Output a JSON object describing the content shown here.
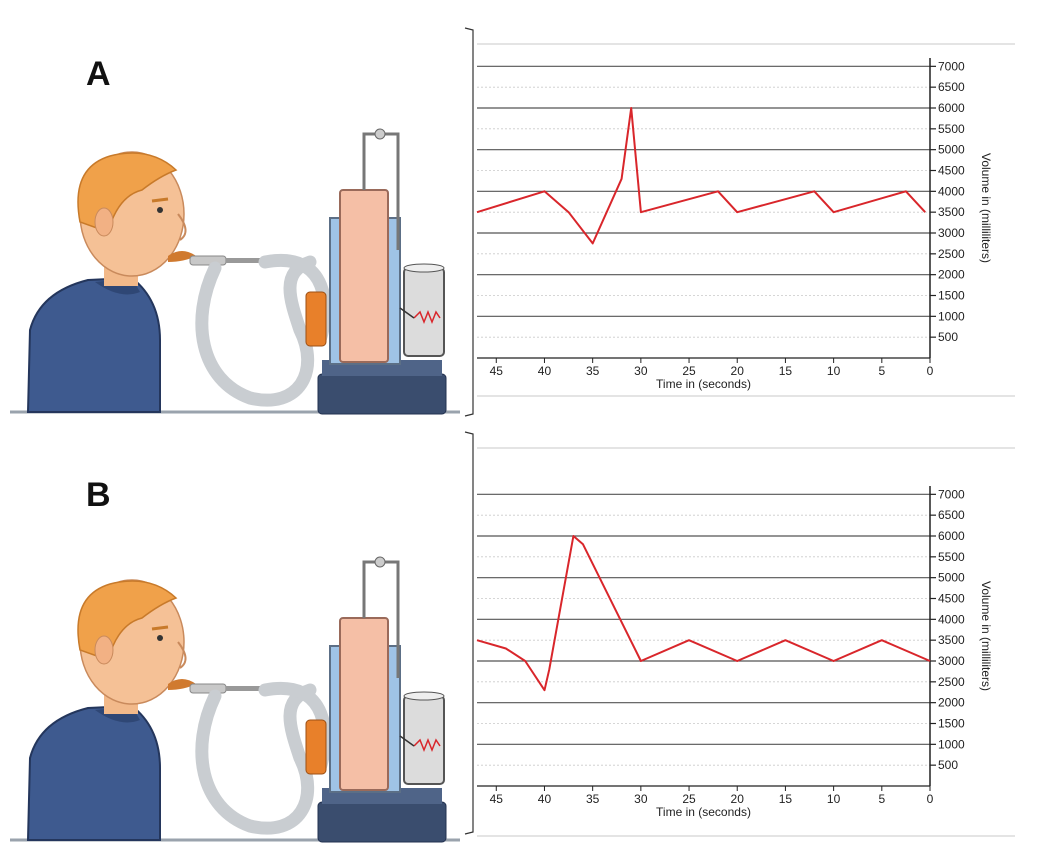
{
  "panels": [
    {
      "label": "A",
      "chart_data": {
        "type": "line",
        "xlabel": "Time in (seconds)",
        "ylabel": "Volume in (milliliters)",
        "x_ticks": [
          "45",
          "40",
          "35",
          "30",
          "25",
          "20",
          "15",
          "10",
          "5",
          "0"
        ],
        "y_ticks": [
          "500",
          "1000",
          "1500",
          "2000",
          "2500",
          "3000",
          "3500",
          "4000",
          "4500",
          "5000",
          "5500",
          "6000",
          "6500",
          "7000"
        ],
        "xlim": [
          47,
          0
        ],
        "ylim": [
          0,
          7200
        ],
        "x_reversed": true,
        "y_axis_side": "right",
        "grid": true,
        "line_color": "#d9262b",
        "series": [
          {
            "x": [
              47,
              40,
              37.5,
              35,
              32,
              31,
              30,
              22,
              20,
              12,
              10,
              2.5,
              0.5
            ],
            "y": [
              3500,
              4000,
              3500,
              2750,
              4300,
              6000,
              3500,
              4000,
              3500,
              4000,
              3500,
              4000,
              3500
            ]
          }
        ]
      }
    },
    {
      "label": "B",
      "chart_data": {
        "type": "line",
        "xlabel": "Time in (seconds)",
        "ylabel": "Volume in (milliliters)",
        "x_ticks": [
          "45",
          "40",
          "35",
          "30",
          "25",
          "20",
          "15",
          "10",
          "5",
          "0"
        ],
        "y_ticks": [
          "500",
          "1000",
          "1500",
          "2000",
          "2500",
          "3000",
          "3500",
          "4000",
          "4500",
          "5000",
          "5500",
          "6000",
          "6500",
          "7000"
        ],
        "xlim": [
          47,
          0
        ],
        "ylim": [
          0,
          7200
        ],
        "x_reversed": true,
        "y_axis_side": "right",
        "grid": true,
        "line_color": "#d9262b",
        "series": [
          {
            "x": [
              47,
              44,
              42,
              40,
              39.5,
              37,
              36,
              30,
              25,
              20,
              15,
              10,
              5,
              0
            ],
            "y": [
              3500,
              3300,
              3000,
              2300,
              2800,
              6000,
              5800,
              3000,
              3500,
              3000,
              3500,
              3000,
              3500,
              3000
            ]
          }
        ]
      }
    }
  ]
}
